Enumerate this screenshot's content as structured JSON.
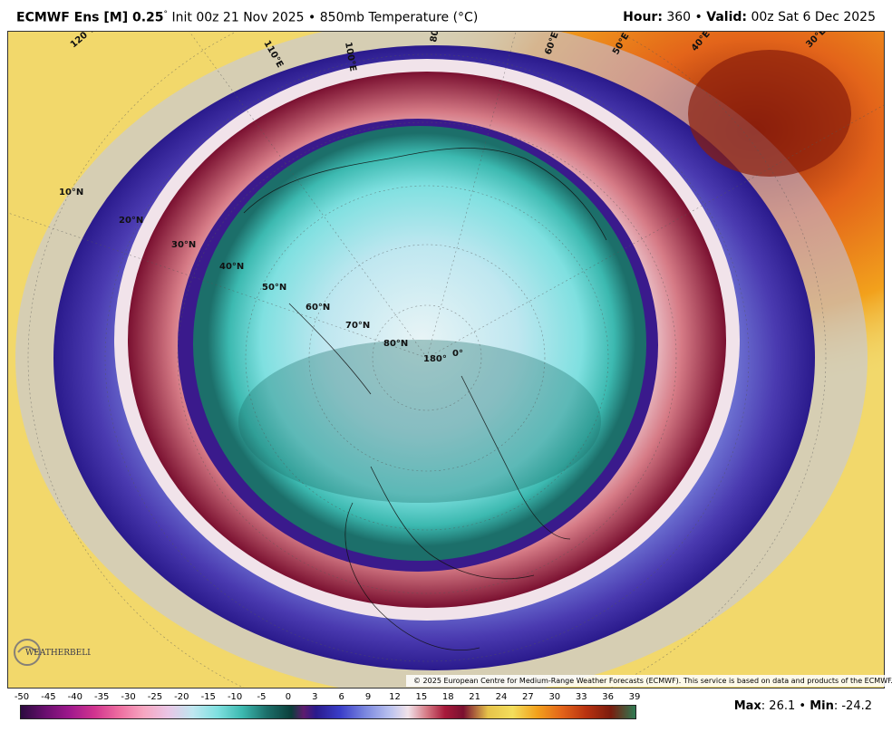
{
  "header": {
    "model": "ECMWF Ens [M] 0.25",
    "degree": "°",
    "init": " Init 00z 21 Nov 2025 • 850mb Temperature (°C)",
    "hour_label": "Hour:",
    "hour_value": " 360 • ",
    "valid_label": "Valid:",
    "valid_value": " 00z Sat 6 Dec 2025"
  },
  "map": {
    "lat_labels": [
      "10°N",
      "20°N",
      "30°N",
      "40°N",
      "50°N",
      "60°N",
      "70°N",
      "80°N",
      "180°",
      "0°"
    ],
    "lon_labels": [
      "120°E",
      "110°E",
      "100°E",
      "80°E",
      "60°E",
      "50°E",
      "40°E",
      "30°E"
    ],
    "copyright": "© 2025 European Centre for Medium-Range Weather Forecasts (ECMWF). This service is based on data and products of the ECMWF.",
    "logo_text": "WEATHERBELL"
  },
  "legend": {
    "ticks": [
      "-50",
      "-45",
      "-40",
      "-35",
      "-30",
      "-25",
      "-20",
      "-15",
      "-10",
      "-5",
      "0",
      "3",
      "6",
      "9",
      "12",
      "15",
      "18",
      "21",
      "24",
      "27",
      "30",
      "33",
      "36",
      "39"
    ]
  },
  "stats": {
    "max_label": "Max",
    "max_value": ": 26.1 • ",
    "min_label": "Min",
    "min_value": ": -24.2"
  },
  "colors": {
    "background_warm": "#f2d86b",
    "hot": "#e3641a",
    "cold_core": "#7fe0e0",
    "ring_red": "#a7193a",
    "ring_blue": "#2a1a8c"
  }
}
